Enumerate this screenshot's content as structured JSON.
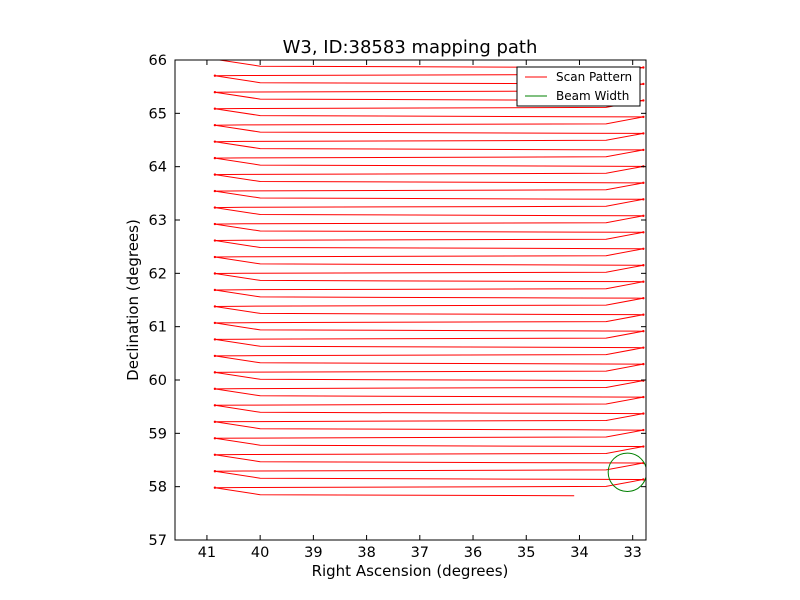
{
  "chart_data": {
    "type": "line",
    "title": "W3, ID:38583 mapping path",
    "xlabel": "Right Ascension (degrees)",
    "ylabel": "Declination (degrees)",
    "xlim": [
      41.6,
      32.75
    ],
    "ylim": [
      57,
      66
    ],
    "x_ticks": [
      "41",
      "40",
      "39",
      "38",
      "37",
      "36",
      "35",
      "34",
      "33"
    ],
    "x_tick_values": [
      41,
      40,
      39,
      38,
      37,
      36,
      35,
      34,
      33
    ],
    "y_ticks": [
      "57",
      "58",
      "59",
      "60",
      "61",
      "62",
      "63",
      "64",
      "65",
      "66"
    ],
    "y_tick_values": [
      57,
      58,
      59,
      60,
      61,
      62,
      63,
      64,
      65,
      66
    ],
    "grid": false,
    "legend_position": "top-right",
    "scan_pattern": {
      "name": "Scan Pattern",
      "color": "#ff0000",
      "dec_start": 57.83,
      "dec_step": 0.1545,
      "row_count": 54,
      "ra_west": 40.85,
      "ra_west_inner": 40.0,
      "ra_east": 32.8,
      "ra_east_inner": 33.5,
      "row_tilt": 0.1
    },
    "beam_width": {
      "name": "Beam Width",
      "color": "#008000",
      "center_ra": 33.1,
      "center_dec": 58.27,
      "radius_deg": 0.36
    }
  }
}
